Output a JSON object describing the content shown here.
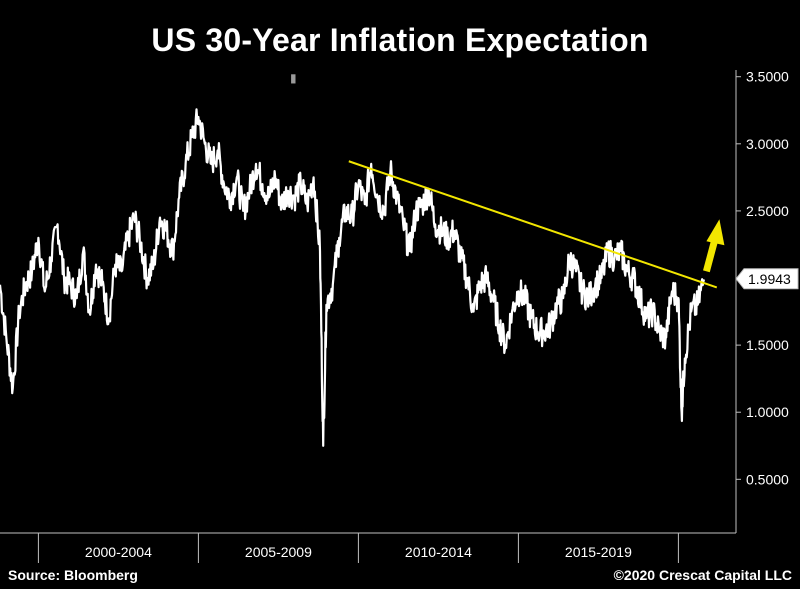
{
  "header": {
    "title": "US 30-Year Inflation Expectation"
  },
  "footer": {
    "source": "Source: Bloomberg",
    "copyright": "©2020 Crescat Capital LLC"
  },
  "colors": {
    "background": "#000000",
    "series": "#ffffff",
    "trendline": "#f2e600",
    "arrow": "#f2e600",
    "axis": "#bfbfbf"
  },
  "chart_data": {
    "type": "line",
    "title": "US 30-Year Inflation Expectation",
    "xlabel": "",
    "ylabel": "",
    "x_range": [
      1998.8,
      2021.8
    ],
    "ylim": [
      0.1,
      3.55
    ],
    "y_ticks": [
      {
        "value": 3.5,
        "label": "3.5000"
      },
      {
        "value": 3.0,
        "label": "3.0000"
      },
      {
        "value": 2.5,
        "label": "2.5000"
      },
      {
        "value": 1.5,
        "label": "1.5000"
      },
      {
        "value": 1.0,
        "label": "1.0000"
      },
      {
        "value": 0.5,
        "label": "0.5000"
      }
    ],
    "x_periods": [
      {
        "label": "2000-2004",
        "start": 2000,
        "end": 2005
      },
      {
        "label": "2005-2009",
        "start": 2005,
        "end": 2010
      },
      {
        "label": "2010-2014",
        "start": 2010,
        "end": 2015
      },
      {
        "label": "2015-2019",
        "start": 2015,
        "end": 2020
      }
    ],
    "last_value": {
      "value": 1.9943,
      "label": "1.9943"
    },
    "series": [
      {
        "name": "US 30-Year Inflation Expectation",
        "x": [
          1998.8,
          1999.0,
          1999.2,
          1999.4,
          1999.6,
          1999.8,
          2000.0,
          2000.2,
          2000.4,
          2000.6,
          2000.8,
          2001.0,
          2001.2,
          2001.4,
          2001.6,
          2001.8,
          2002.0,
          2002.2,
          2002.4,
          2002.6,
          2002.8,
          2003.0,
          2003.2,
          2003.4,
          2003.6,
          2003.8,
          2004.0,
          2004.2,
          2004.4,
          2004.6,
          2004.8,
          2005.0,
          2005.2,
          2005.4,
          2005.6,
          2005.8,
          2006.0,
          2006.2,
          2006.4,
          2006.6,
          2006.8,
          2007.0,
          2007.2,
          2007.4,
          2007.6,
          2007.8,
          2008.0,
          2008.2,
          2008.4,
          2008.6,
          2008.8,
          2008.9,
          2009.0,
          2009.2,
          2009.4,
          2009.6,
          2009.8,
          2010.0,
          2010.2,
          2010.4,
          2010.6,
          2010.8,
          2011.0,
          2011.2,
          2011.4,
          2011.6,
          2011.8,
          2012.0,
          2012.2,
          2012.4,
          2012.6,
          2012.8,
          2013.0,
          2013.2,
          2013.4,
          2013.6,
          2013.8,
          2014.0,
          2014.2,
          2014.4,
          2014.6,
          2014.8,
          2015.0,
          2015.2,
          2015.4,
          2015.6,
          2015.8,
          2016.0,
          2016.2,
          2016.4,
          2016.6,
          2016.8,
          2017.0,
          2017.2,
          2017.4,
          2017.6,
          2017.8,
          2018.0,
          2018.2,
          2018.4,
          2018.6,
          2018.8,
          2019.0,
          2019.2,
          2019.4,
          2019.6,
          2019.8,
          2020.0,
          2020.1,
          2020.2,
          2020.4,
          2020.6,
          2020.8
        ],
        "y": [
          1.95,
          1.55,
          1.18,
          1.75,
          1.95,
          2.05,
          2.3,
          1.9,
          2.15,
          2.4,
          2.0,
          1.95,
          1.85,
          2.2,
          1.75,
          2.1,
          1.95,
          1.7,
          2.1,
          2.05,
          2.3,
          2.45,
          2.25,
          2.0,
          2.1,
          2.45,
          2.35,
          2.2,
          2.6,
          2.85,
          3.05,
          3.2,
          3.0,
          2.85,
          2.95,
          2.7,
          2.6,
          2.75,
          2.5,
          2.65,
          2.85,
          2.7,
          2.6,
          2.75,
          2.55,
          2.65,
          2.6,
          2.7,
          2.55,
          2.75,
          2.2,
          0.75,
          1.8,
          1.95,
          2.3,
          2.5,
          2.45,
          2.7,
          2.55,
          2.85,
          2.6,
          2.5,
          2.8,
          2.6,
          2.4,
          2.2,
          2.5,
          2.55,
          2.65,
          2.4,
          2.35,
          2.3,
          2.35,
          2.15,
          2.0,
          1.75,
          1.95,
          2.0,
          1.85,
          1.65,
          1.5,
          1.75,
          1.9,
          1.85,
          1.7,
          1.6,
          1.6,
          1.65,
          1.8,
          1.85,
          2.15,
          2.05,
          1.9,
          1.85,
          1.95,
          2.0,
          2.2,
          2.15,
          2.2,
          2.05,
          2.0,
          1.85,
          1.7,
          1.75,
          1.6,
          1.55,
          1.9,
          1.85,
          1.0,
          1.4,
          1.75,
          1.8,
          1.99
        ]
      }
    ],
    "trendline": {
      "x": [
        2009.7,
        2020.6,
        2021.2
      ],
      "y": [
        2.87,
        2.0,
        1.93
      ]
    },
    "annotation": {
      "type": "arrow",
      "direction": "up",
      "x": 2021.0,
      "y": 2.05
    }
  }
}
